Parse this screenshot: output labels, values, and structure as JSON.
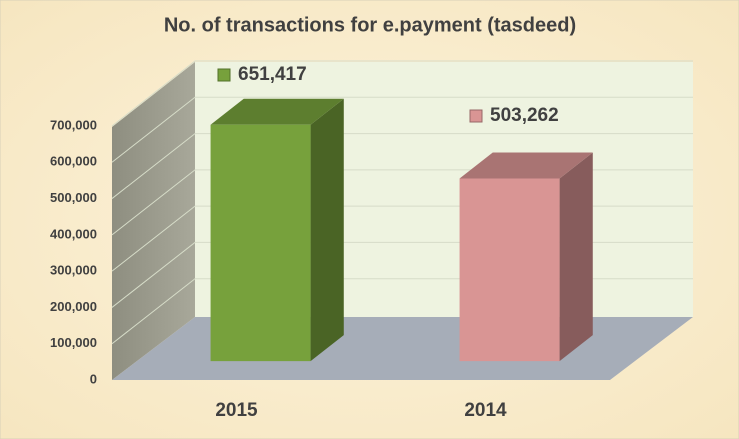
{
  "chart_data": {
    "type": "bar3d",
    "title": "No. of transactions for e.payment (tasdeed)",
    "categories": [
      "2015",
      "2014"
    ],
    "values": [
      651417,
      503262
    ],
    "value_labels": [
      "651,417",
      "503,262"
    ],
    "colors": [
      "#77a13c",
      "#d99594"
    ],
    "ylim": [
      0,
      700000
    ],
    "yticks": [
      0,
      {
        "value": 100000,
        "label": "100,000"
      },
      {
        "value": 200000,
        "label": "200,000"
      },
      {
        "value": 300000,
        "label": "300,000"
      },
      {
        "value": 400000,
        "label": "400,000"
      },
      {
        "value": 500000,
        "label": "500,000"
      },
      {
        "value": 600000,
        "label": "600,000"
      },
      {
        "value": 700000,
        "label": "700,000"
      }
    ],
    "grid": true
  }
}
